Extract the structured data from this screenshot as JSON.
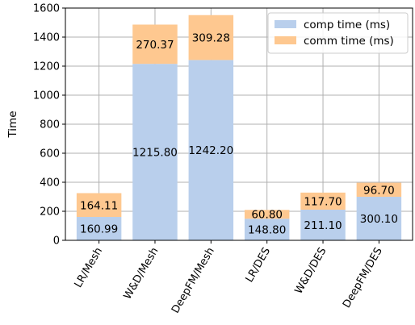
{
  "chart_data": {
    "type": "bar",
    "stacked": true,
    "categories": [
      "LR/Mesh",
      "W&D/Mesh",
      "DeepFM/Mesh",
      "LR/DES",
      "W&D/DES",
      "DeepFM/DES"
    ],
    "series": [
      {
        "name": "comp time (ms)",
        "color": "#b9cfec",
        "values": [
          160.99,
          1215.8,
          1242.2,
          148.8,
          211.1,
          300.1
        ],
        "labels": [
          "160.99",
          "1215.80",
          "1242.20",
          "148.80",
          "211.10",
          "300.10"
        ]
      },
      {
        "name": "comm time (ms)",
        "color": "#fec890",
        "values": [
          164.11,
          270.37,
          309.28,
          60.8,
          117.7,
          96.7
        ],
        "labels": [
          "164.11",
          "270.37",
          "309.28",
          "60.80",
          "117.70",
          "96.70"
        ]
      }
    ],
    "ylabel": "Time",
    "xlabel": "",
    "ylim": [
      0,
      1600
    ],
    "yticks": [
      "0",
      "200",
      "400",
      "600",
      "800",
      "1000",
      "1200",
      "1400",
      "1600"
    ],
    "grid": true,
    "legend": "top-right"
  }
}
